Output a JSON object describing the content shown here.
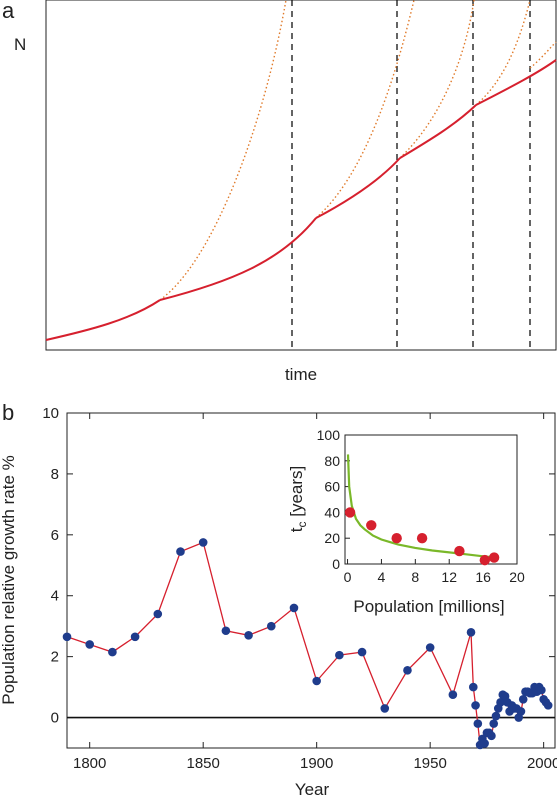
{
  "chart_data": [
    {
      "type": "line",
      "panel_label": "a",
      "ylabel": "N",
      "xlabel": "time",
      "axis_ticks": false,
      "series": [
        {
          "role": "solid",
          "color": "#d6202e"
        },
        {
          "role": "dotted",
          "color": "#e07a2a"
        }
      ],
      "vertical_dashed_lines": 4
    },
    {
      "type": "line",
      "panel_label": "b",
      "xlabel": "Year",
      "ylabel": "Population relative growth rate %",
      "xlim": [
        1790,
        2005
      ],
      "ylim": [
        -1,
        10
      ],
      "xticks": [
        "1800",
        "1850",
        "1900",
        "1950",
        "2000"
      ],
      "yticks": [
        "0",
        "2",
        "4",
        "6",
        "8",
        "10"
      ],
      "reference_line_y": 0,
      "series": [
        {
          "color": "#d6202e",
          "marker_color": "#1f3c8c",
          "x": [
            1790,
            1800,
            1810,
            1820,
            1830,
            1840,
            1850,
            1860,
            1870,
            1880,
            1890,
            1900,
            1910,
            1920,
            1930,
            1940,
            1950,
            1960,
            1968,
            1969,
            1970,
            1971,
            1972,
            1973,
            1974,
            1975,
            1976,
            1977,
            1978,
            1979,
            1980,
            1981,
            1982,
            1983,
            1984,
            1985,
            1986,
            1987,
            1988,
            1989,
            1990,
            1991,
            1992,
            1993,
            1994,
            1995,
            1996,
            1997,
            1998,
            1999,
            2000,
            2001,
            2002
          ],
          "y": [
            2.65,
            2.4,
            2.15,
            2.65,
            3.4,
            5.45,
            5.75,
            2.85,
            2.7,
            3.0,
            3.6,
            1.2,
            2.05,
            2.15,
            0.3,
            1.55,
            2.3,
            0.75,
            2.8,
            1.0,
            0.4,
            -0.2,
            -0.9,
            -0.7,
            -0.85,
            -0.5,
            -0.5,
            -0.6,
            -0.2,
            0.05,
            0.3,
            0.5,
            0.75,
            0.7,
            0.5,
            0.2,
            0.4,
            0.3,
            0.3,
            0.0,
            0.2,
            0.6,
            0.85,
            0.85,
            0.8,
            0.8,
            1.0,
            0.85,
            1.0,
            0.9,
            0.6,
            0.5,
            0.4
          ]
        }
      ],
      "inset": {
        "type": "scatter",
        "xlabel": "Population [millions]",
        "ylabel_main": "t",
        "ylabel_sub": "c",
        "ylabel_rest": " [years]",
        "xlim": [
          -0.3,
          20
        ],
        "ylim": [
          0,
          100
        ],
        "xticks": [
          "0",
          "4",
          "8",
          "12",
          "16",
          "20"
        ],
        "yticks": [
          "0",
          "20",
          "40",
          "60",
          "80",
          "100"
        ],
        "points": {
          "color": "#d6202e",
          "x": [
            0.3,
            2.8,
            5.8,
            8.8,
            13.2,
            16.2,
            17.3
          ],
          "y": [
            40,
            30,
            20,
            20,
            10,
            3,
            5
          ]
        },
        "fit": {
          "color": "#7ab829",
          "x": [
            0.05,
            0.2,
            0.5,
            1,
            1.5,
            2,
            3,
            4,
            5,
            6,
            8,
            10,
            12,
            14,
            16,
            17.5
          ],
          "y": [
            85,
            60,
            45,
            35,
            30,
            27,
            22,
            19,
            17,
            15,
            12.5,
            10.5,
            9,
            7.5,
            6,
            5
          ]
        }
      }
    }
  ]
}
